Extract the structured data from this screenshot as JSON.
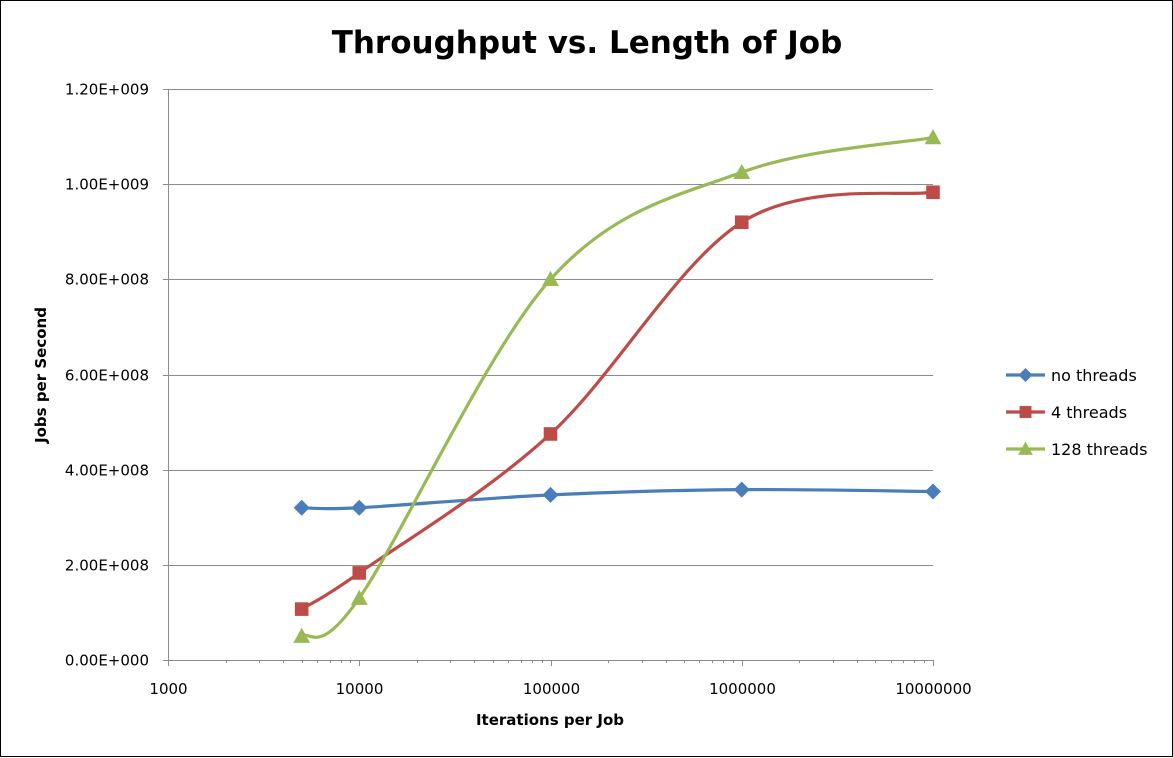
{
  "chart_data": {
    "type": "line",
    "title": "Throughput vs. Length of Job",
    "xlabel": "Iterations per Job",
    "ylabel": "Jobs per Second",
    "x_scale": "log",
    "xlim": [
      1000,
      10000000
    ],
    "ylim": [
      0,
      1200000000
    ],
    "x_ticks": [
      1000,
      10000,
      100000,
      1000000,
      10000000
    ],
    "x_tick_labels": [
      "1000",
      "10000",
      "100000",
      "1000000",
      "10000000"
    ],
    "y_ticks": [
      0,
      200000000,
      400000000,
      600000000,
      800000000,
      1000000000,
      1200000000
    ],
    "y_tick_labels": [
      "0.00E+000",
      "2.00E+008",
      "4.00E+008",
      "6.00E+008",
      "8.00E+008",
      "1.00E+009",
      "1.20E+009"
    ],
    "grid": "horizontal",
    "legend_position": "right",
    "x": [
      5000,
      10000,
      100000,
      1000000,
      10000000
    ],
    "series": [
      {
        "name": "no threads",
        "marker": "diamond",
        "color": "#4a7ebb",
        "values": [
          320000000,
          320000000,
          347000000,
          358000000,
          354000000
        ]
      },
      {
        "name": "4 threads",
        "marker": "square",
        "color": "#be4b48",
        "values": [
          107000000,
          183000000,
          475000000,
          920000000,
          983000000
        ]
      },
      {
        "name": "128 threads",
        "marker": "triangle",
        "color": "#98b954",
        "values": [
          50000000,
          130000000,
          800000000,
          1025000000,
          1098000000
        ]
      }
    ]
  }
}
